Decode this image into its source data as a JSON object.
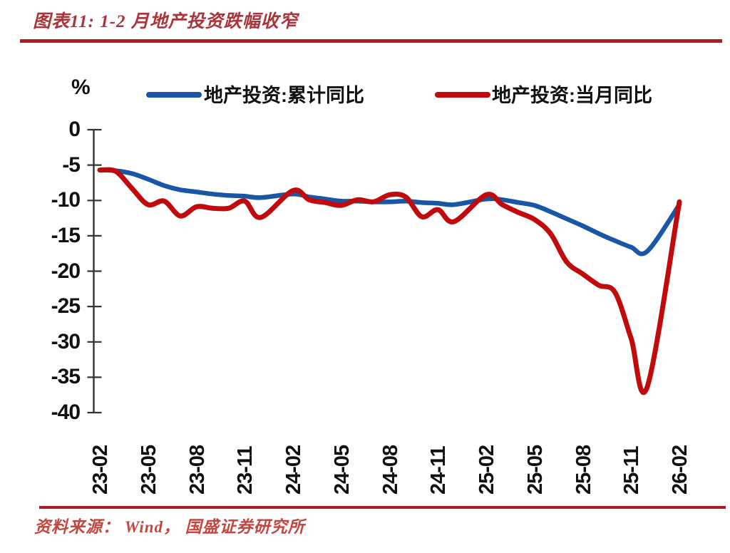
{
  "header": {
    "title_prefix": "图表11:"
  },
  "chart_data": {
    "type": "line",
    "title": "图表11: 1-2 月地产投资跌幅收窄",
    "ylabel": "%",
    "ylim": [
      -40,
      0
    ],
    "y_ticks": [
      0,
      -5,
      -10,
      -15,
      -20,
      -25,
      -30,
      -35,
      -40
    ],
    "x_tick_labels": [
      "23-02",
      "23-05",
      "23-08",
      "23-11",
      "24-02",
      "24-05",
      "24-08",
      "24-11",
      "25-02",
      "25-05",
      "25-08",
      "25-11",
      "26-02"
    ],
    "x": [
      "23-02",
      "23-03",
      "23-04",
      "23-05",
      "23-06",
      "23-07",
      "23-08",
      "23-09",
      "23-10",
      "23-11",
      "23-12",
      "24-02",
      "24-03",
      "24-04",
      "24-05",
      "24-06",
      "24-07",
      "24-08",
      "24-09",
      "24-10",
      "24-11",
      "24-12",
      "25-02",
      "25-03",
      "25-04",
      "25-05",
      "25-06",
      "25-07",
      "25-08",
      "25-09",
      "25-10",
      "25-11",
      "25-12",
      "26-02"
    ],
    "series": [
      {
        "name": "地产投资:累计同比",
        "color": "#1956A6",
        "values": [
          -5.7,
          -5.8,
          -6.2,
          -7.0,
          -7.9,
          -8.5,
          -8.8,
          -9.1,
          -9.3,
          -9.4,
          -9.6,
          -9.1,
          -9.5,
          -9.8,
          -10.1,
          -10.1,
          -10.2,
          -10.2,
          -10.1,
          -10.3,
          -10.4,
          -10.6,
          -9.8,
          -9.9,
          -10.3,
          -10.7,
          -11.6,
          -12.6,
          -13.6,
          -14.7,
          -15.7,
          -16.6,
          -17.2,
          -10.6
        ]
      },
      {
        "name": "地产投资:当月同比",
        "color": "#C00A0C",
        "values": [
          -5.7,
          -5.9,
          -8.3,
          -10.6,
          -10.1,
          -12.2,
          -10.9,
          -11.1,
          -11.1,
          -10.1,
          -12.4,
          -8.6,
          -9.9,
          -10.3,
          -10.7,
          -9.9,
          -10.2,
          -9.2,
          -9.5,
          -12.3,
          -11.3,
          -13.0,
          -9.2,
          -10.6,
          -11.7,
          -12.7,
          -14.7,
          -18.7,
          -20.4,
          -22.0,
          -23.0,
          -29.5,
          -36.4,
          -10.2
        ]
      }
    ],
    "legend_position": "top",
    "grid": false,
    "source_note": "资料来源： Wind， 国盛证券研究所"
  }
}
